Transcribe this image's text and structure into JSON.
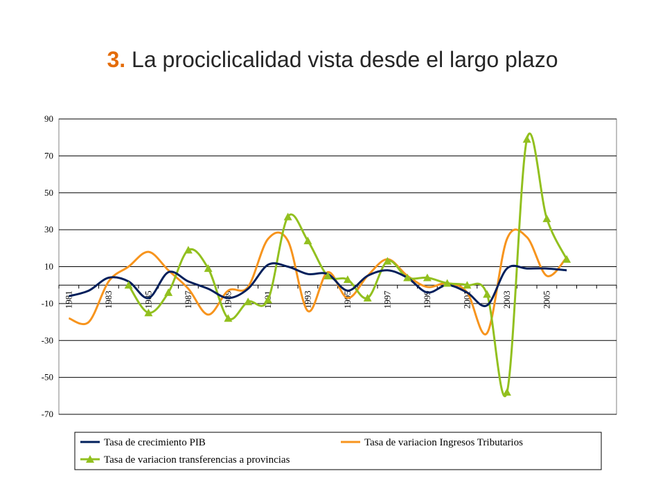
{
  "slide": {
    "title_number": "3.",
    "title_text": "La prociclicalidad vista desde el largo plazo"
  },
  "colors": {
    "title_number": "#e46c0a",
    "series": [
      "#001f5b",
      "#f7941d",
      "#92c01f"
    ]
  },
  "chart_data": {
    "type": "line",
    "title": "",
    "xlabel": "",
    "ylabel": "",
    "ylim": [
      -70,
      90
    ],
    "yticks": [
      90,
      70,
      50,
      30,
      10,
      -10,
      -30,
      -50,
      -70
    ],
    "grid": true,
    "legend_position": "bottom",
    "x": [
      1981,
      1982,
      1983,
      1984,
      1985,
      1986,
      1987,
      1988,
      1989,
      1990,
      1991,
      1992,
      1993,
      1994,
      1995,
      1996,
      1997,
      1998,
      1999,
      2000,
      2001,
      2002,
      2003,
      2004,
      2005,
      2006
    ],
    "x_tick_labels": [
      "1981",
      "1983",
      "1985",
      "1987",
      "1989",
      "1991",
      "1993",
      "1995",
      "1997",
      "1999",
      "2001",
      "2003",
      "2005"
    ],
    "series": [
      {
        "name": "Tasa de crecimiento PIB",
        "marker": "none",
        "values": [
          -6,
          -3,
          4,
          2,
          -7,
          7,
          2,
          -2,
          -7,
          -2,
          11,
          10,
          6,
          6,
          -3,
          5,
          8,
          4,
          -4,
          0,
          -4,
          -11,
          9,
          9,
          9,
          8
        ]
      },
      {
        "name": "Tasa de variacion Ingresos Tributarios",
        "marker": "none",
        "values": [
          -18,
          -20,
          2,
          10,
          18,
          8,
          -2,
          -16,
          -3,
          -1,
          25,
          24,
          -14,
          7,
          -7,
          5,
          14,
          5,
          -1,
          1,
          -4,
          -26,
          25,
          26,
          5,
          15
        ]
      },
      {
        "name": "Tasa de variacion transferencias a provincias",
        "marker": "triangle",
        "values": [
          null,
          null,
          null,
          0,
          -15,
          -4,
          19,
          9,
          -18,
          -9,
          -8,
          37,
          24,
          5,
          3,
          -7,
          13,
          4,
          4,
          1,
          0,
          -5,
          -58,
          79,
          36,
          14
        ]
      }
    ]
  }
}
